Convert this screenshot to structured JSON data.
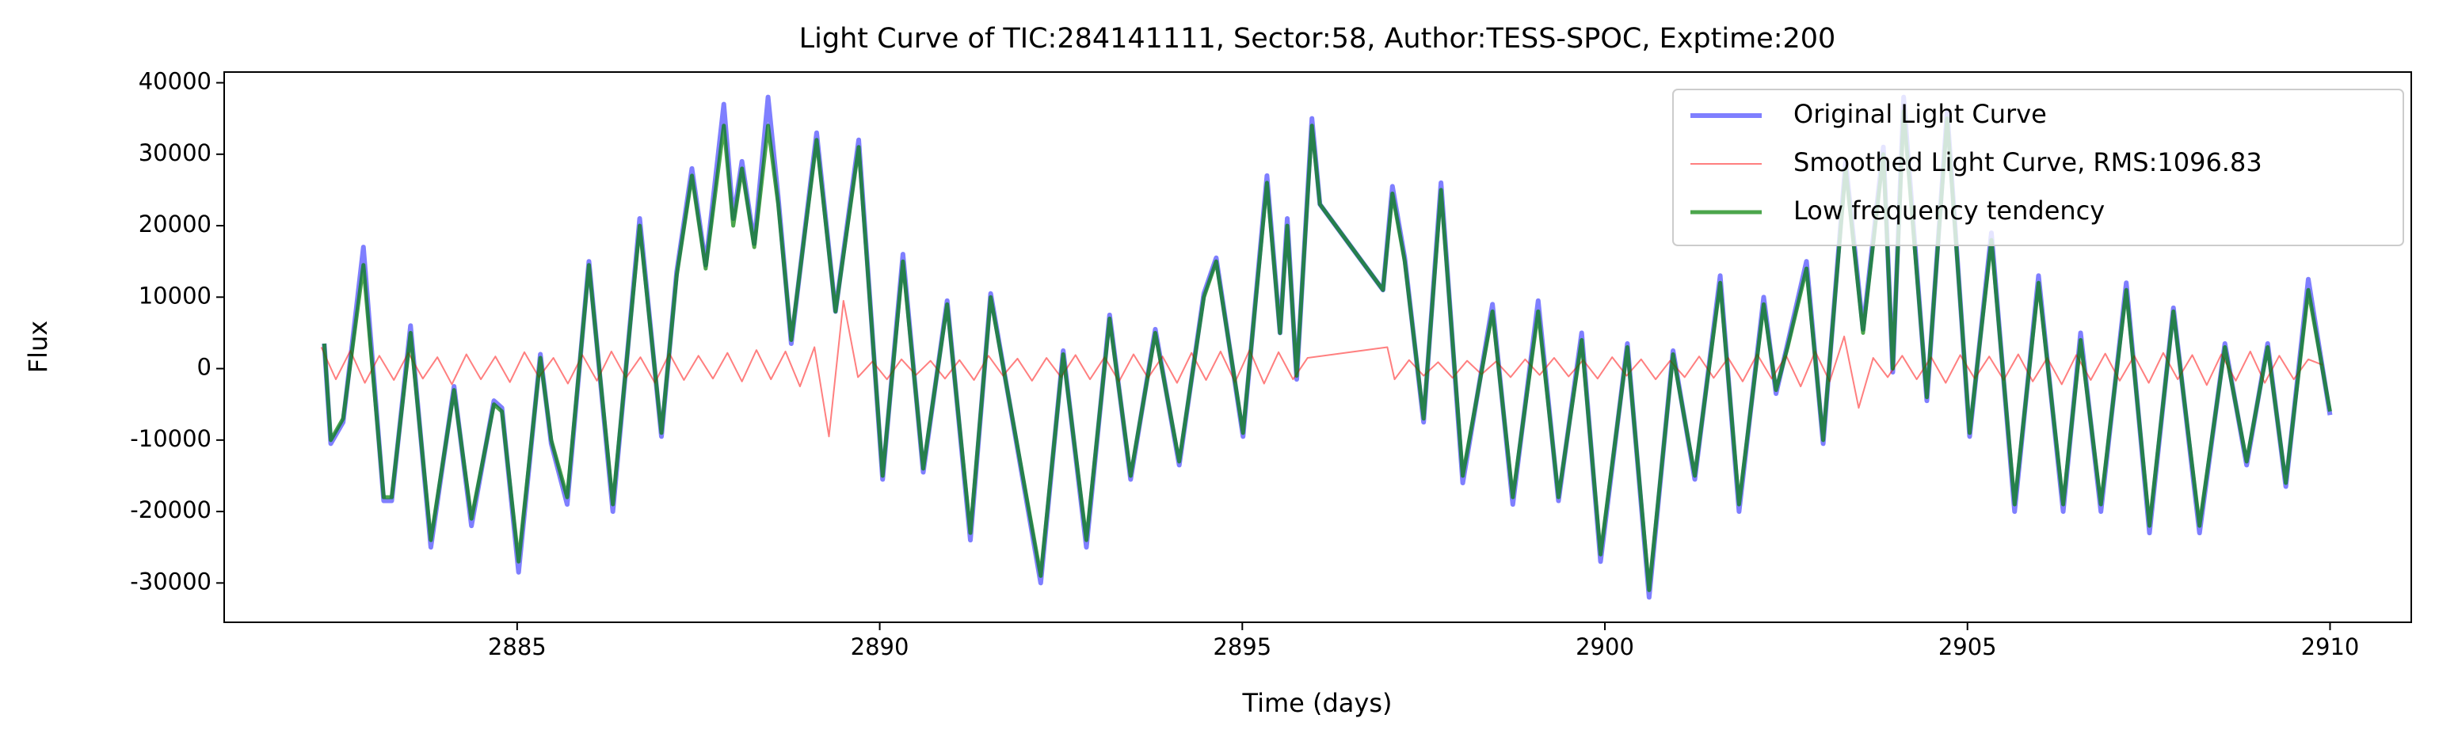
{
  "chart_data": {
    "type": "line",
    "title": "Light Curve of TIC:284141111, Sector:58, Author:TESS-SPOC, Exptime:200",
    "x_label": "Time (days)",
    "y_label": "Flux",
    "xlim": [
      2880.96,
      2911.12
    ],
    "ylim": [
      -35500,
      41500
    ],
    "xticks": [
      2885,
      2890,
      2895,
      2900,
      2905,
      2910
    ],
    "yticks": [
      -30000,
      -20000,
      -10000,
      0,
      10000,
      20000,
      30000,
      40000
    ],
    "grid": false,
    "legend": "upper right",
    "series": [
      {
        "name": "Original Light Curve",
        "color": "blue",
        "alpha": 0.5,
        "width": 6,
        "x": [
          2882.34,
          2882.43,
          2882.6,
          2882.88,
          2883.16,
          2883.27,
          2883.53,
          2883.81,
          2884.13,
          2884.37,
          2884.68,
          2884.79,
          2885.02,
          2885.32,
          2885.47,
          2885.69,
          2885.99,
          2886.32,
          2886.69,
          2886.99,
          2887.2,
          2887.41,
          2887.6,
          2887.85,
          2887.98,
          2888.1,
          2888.27,
          2888.46,
          2888.6,
          2888.78,
          2889.13,
          2889.39,
          2889.71,
          2890.04,
          2890.32,
          2890.6,
          2890.93,
          2891.25,
          2891.53,
          2892.22,
          2892.53,
          2892.85,
          2893.17,
          2893.46,
          2893.8,
          2894.13,
          2894.47,
          2894.64,
          2895.01,
          2895.34,
          2895.52,
          2895.62,
          2895.75,
          2895.96,
          2896.07,
          2896.94,
          2897.07,
          2897.24,
          2897.5,
          2897.74,
          2898.04,
          2898.45,
          2898.73,
          2899.08,
          2899.36,
          2899.68,
          2899.94,
          2900.31,
          2900.61,
          2900.94,
          2901.24,
          2901.59,
          2901.85,
          2902.19,
          2902.36,
          2902.52,
          2902.78,
          2903.01,
          2903.32,
          2903.56,
          2903.84,
          2903.97,
          2904.12,
          2904.44,
          2904.72,
          2905.03,
          2905.33,
          2905.65,
          2905.98,
          2906.32,
          2906.56,
          2906.84,
          2907.19,
          2907.51,
          2907.84,
          2908.2,
          2908.55,
          2908.85,
          2909.14,
          2909.39,
          2909.7,
          2910.0
        ],
        "values": [
          3500,
          -10500,
          -7500,
          17000,
          -18500,
          -18500,
          6000,
          -25000,
          -2500,
          -22000,
          -4500,
          -5500,
          -28500,
          2000,
          -10500,
          -19000,
          15000,
          -20000,
          21000,
          -9500,
          13500,
          28000,
          14500,
          37000,
          21000,
          29000,
          17500,
          38000,
          24000,
          3500,
          33000,
          8000,
          32000,
          -15500,
          16000,
          -14500,
          9500,
          -24000,
          10500,
          -30000,
          2500,
          -25000,
          7500,
          -15500,
          5500,
          -13500,
          10500,
          15500,
          -9500,
          27000,
          5000,
          21000,
          -1500,
          35000,
          23000,
          11000,
          25500,
          15500,
          -7500,
          26000,
          -16000,
          9000,
          -19000,
          9500,
          -18500,
          5000,
          -27000,
          3500,
          -32000,
          2500,
          -15500,
          13000,
          -20000,
          10000,
          -3500,
          3500,
          15000,
          -10500,
          29000,
          5500,
          31000,
          -500,
          38000,
          -4500,
          36000,
          -9500,
          19000,
          -20000,
          13000,
          -20000,
          5000,
          -20000,
          12000,
          -23000,
          8500,
          -23000,
          3500,
          -13500,
          3500,
          -16500,
          12500,
          -6500
        ]
      },
      {
        "name": "Smoothed Light Curve, RMS:1096.83",
        "color": "red",
        "alpha": 0.5,
        "width": 2,
        "x": [
          2882.3,
          2882.5,
          2882.7,
          2882.9,
          2883.1,
          2883.3,
          2883.5,
          2883.7,
          2883.9,
          2884.1,
          2884.3,
          2884.5,
          2884.7,
          2884.9,
          2885.1,
          2885.3,
          2885.5,
          2885.7,
          2885.9,
          2886.1,
          2886.3,
          2886.5,
          2886.7,
          2886.9,
          2887.1,
          2887.3,
          2887.5,
          2887.7,
          2887.9,
          2888.1,
          2888.3,
          2888.5,
          2888.7,
          2888.9,
          2889.1,
          2889.3,
          2889.5,
          2889.7,
          2889.9,
          2890.1,
          2890.3,
          2890.5,
          2890.7,
          2890.9,
          2891.1,
          2891.3,
          2891.5,
          2891.7,
          2891.9,
          2892.1,
          2892.3,
          2892.5,
          2892.7,
          2892.9,
          2893.1,
          2893.3,
          2893.5,
          2893.7,
          2893.9,
          2894.1,
          2894.3,
          2894.5,
          2894.7,
          2894.9,
          2895.1,
          2895.3,
          2895.5,
          2895.7,
          2895.9,
          2897.0,
          2897.1,
          2897.3,
          2897.5,
          2897.7,
          2897.9,
          2898.1,
          2898.3,
          2898.5,
          2898.7,
          2898.9,
          2899.1,
          2899.3,
          2899.5,
          2899.7,
          2899.9,
          2900.1,
          2900.3,
          2900.5,
          2900.7,
          2900.9,
          2901.1,
          2901.3,
          2901.5,
          2901.7,
          2901.9,
          2902.1,
          2902.3,
          2902.5,
          2902.7,
          2902.9,
          2903.1,
          2903.3,
          2903.5,
          2903.7,
          2903.9,
          2904.1,
          2904.3,
          2904.5,
          2904.7,
          2904.9,
          2905.1,
          2905.3,
          2905.5,
          2905.7,
          2905.9,
          2906.1,
          2906.3,
          2906.5,
          2906.7,
          2906.9,
          2907.1,
          2907.3,
          2907.5,
          2907.7,
          2907.9,
          2908.1,
          2908.3,
          2908.5,
          2908.7,
          2908.9,
          2909.1,
          2909.3,
          2909.5,
          2909.7,
          2909.9
        ],
        "values": [
          3000,
          -1500,
          2500,
          -2000,
          1800,
          -1600,
          2200,
          -1400,
          1600,
          -2200,
          2000,
          -1500,
          1700,
          -1900,
          2300,
          -1200,
          1500,
          -2100,
          1900,
          -1700,
          2400,
          -1300,
          1600,
          -2000,
          2100,
          -1600,
          1800,
          -1400,
          2200,
          -1800,
          2600,
          -1500,
          2400,
          -2500,
          3000,
          -9500,
          9500,
          -1200,
          1000,
          -1500,
          1300,
          -900,
          1100,
          -1400,
          1200,
          -1600,
          1800,
          -1000,
          1400,
          -1700,
          1500,
          -1200,
          1900,
          -1500,
          1600,
          -1800,
          2000,
          -1300,
          1700,
          -2000,
          2200,
          -1600,
          2400,
          -1900,
          2600,
          -2100,
          2300,
          -1500,
          1500,
          3000,
          -1500,
          1200,
          -1000,
          900,
          -1300,
          1100,
          -800,
          1000,
          -1200,
          1300,
          -900,
          1500,
          -1100,
          1200,
          -1400,
          1600,
          -1000,
          1300,
          -1500,
          1100,
          -1200,
          1700,
          -1300,
          1500,
          -1800,
          2000,
          -1400,
          1800,
          -2500,
          2400,
          -1800,
          4500,
          -5500,
          1500,
          -1200,
          1800,
          -1500,
          1600,
          -2000,
          1900,
          -1400,
          1700,
          -1600,
          2000,
          -1800,
          1500,
          -2200,
          1900,
          -1600,
          2100,
          -1700,
          1800,
          -2000,
          2200,
          -1500,
          1900,
          -2300,
          2000,
          -1700,
          2400,
          -2000,
          1800,
          -1500,
          1300,
          500
        ]
      },
      {
        "name": "Low frequency tendency",
        "color": "green",
        "alpha": 0.7,
        "width": 5,
        "x": [
          2882.34,
          2882.43,
          2882.6,
          2882.88,
          2883.16,
          2883.27,
          2883.53,
          2883.81,
          2884.13,
          2884.37,
          2884.68,
          2884.79,
          2885.02,
          2885.32,
          2885.47,
          2885.69,
          2885.99,
          2886.32,
          2886.69,
          2886.99,
          2887.2,
          2887.41,
          2887.6,
          2887.85,
          2887.98,
          2888.1,
          2888.27,
          2888.46,
          2888.6,
          2888.78,
          2889.13,
          2889.39,
          2889.71,
          2890.04,
          2890.32,
          2890.6,
          2890.93,
          2891.25,
          2891.53,
          2892.22,
          2892.53,
          2892.85,
          2893.17,
          2893.46,
          2893.8,
          2894.13,
          2894.47,
          2894.64,
          2895.01,
          2895.34,
          2895.52,
          2895.62,
          2895.75,
          2895.96,
          2896.07,
          2896.94,
          2897.07,
          2897.24,
          2897.5,
          2897.74,
          2898.04,
          2898.45,
          2898.73,
          2899.08,
          2899.36,
          2899.68,
          2899.94,
          2900.31,
          2900.61,
          2900.94,
          2901.24,
          2901.59,
          2901.85,
          2902.19,
          2902.36,
          2902.52,
          2902.78,
          2903.01,
          2903.32,
          2903.56,
          2903.84,
          2903.97,
          2904.12,
          2904.44,
          2904.72,
          2905.03,
          2905.33,
          2905.65,
          2905.98,
          2906.32,
          2906.56,
          2906.84,
          2907.19,
          2907.51,
          2907.84,
          2908.2,
          2908.55,
          2908.85,
          2909.14,
          2909.39,
          2909.7,
          2910.0
        ],
        "values": [
          3500,
          -10000,
          -7000,
          14500,
          -18000,
          -18000,
          5000,
          -24000,
          -3000,
          -21000,
          -5000,
          -6000,
          -27000,
          1500,
          -10000,
          -18000,
          14500,
          -19000,
          20000,
          -9000,
          13000,
          27000,
          14000,
          34000,
          20000,
          28000,
          17000,
          34000,
          23000,
          4000,
          32000,
          8000,
          31000,
          -15000,
          15000,
          -14000,
          9000,
          -23000,
          10000,
          -29000,
          2000,
          -24000,
          7000,
          -15000,
          5000,
          -13000,
          10000,
          15000,
          -9000,
          26000,
          5000,
          20000,
          -1000,
          34000,
          23000,
          11000,
          24500,
          15000,
          -7000,
          25000,
          -15000,
          8000,
          -18000,
          8000,
          -18000,
          4000,
          -26000,
          3000,
          -31000,
          2000,
          -15000,
          12000,
          -19000,
          9000,
          -3000,
          3000,
          14000,
          -10000,
          28000,
          5000,
          30000,
          0,
          36000,
          -4000,
          35000,
          -9000,
          18000,
          -19000,
          12000,
          -19000,
          4000,
          -19000,
          11000,
          -22000,
          8000,
          -22000,
          3000,
          -13000,
          3000,
          -16000,
          11000,
          -6000
        ]
      }
    ]
  }
}
